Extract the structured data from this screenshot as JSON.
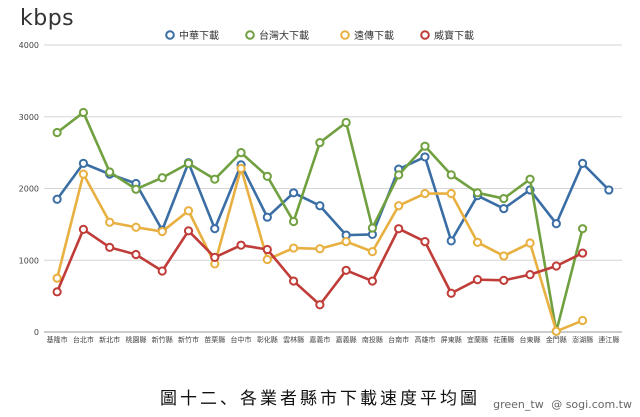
{
  "unit_label": "kbps",
  "caption": "圖十二、各業者縣市下載速度平均圖",
  "watermark": {
    "left": "green_tw",
    "right": "@ sogi.com.tw"
  },
  "chart_data": {
    "type": "line",
    "title": "",
    "ylabel": "kbps",
    "ylim": [
      0,
      4000
    ],
    "yticks": [
      0,
      1000,
      2000,
      3000,
      4000
    ],
    "grid": true,
    "legend_position": "top",
    "categories": [
      "基隆市",
      "台北市",
      "新北市",
      "桃園縣",
      "新竹縣",
      "新竹市",
      "苗栗縣",
      "台中市",
      "彰化縣",
      "雲林縣",
      "嘉義市",
      "嘉義縣",
      "南投縣",
      "台南市",
      "高雄市",
      "屏東縣",
      "宜蘭縣",
      "花蓮縣",
      "台東縣",
      "金門縣",
      "澎湖縣",
      "連江縣"
    ],
    "series": [
      {
        "name": "中華下載",
        "color": "#3a6ea5",
        "values": [
          1850,
          2350,
          2200,
          2070,
          1420,
          2360,
          1440,
          2330,
          1600,
          1940,
          1760,
          1350,
          1360,
          2270,
          2440,
          1270,
          1900,
          1720,
          1980,
          1510,
          2350,
          1980
        ]
      },
      {
        "name": "台灣大下載",
        "color": "#70a040",
        "values": [
          2780,
          3060,
          2230,
          1990,
          2150,
          2350,
          2130,
          2500,
          2170,
          1540,
          2640,
          2920,
          1450,
          2190,
          2590,
          2190,
          1940,
          1860,
          2130,
          10,
          1440,
          null
        ]
      },
      {
        "name": "遠傳下載",
        "color": "#e8b040",
        "values": [
          750,
          2200,
          1530,
          1460,
          1400,
          1690,
          950,
          2280,
          1010,
          1170,
          1160,
          1260,
          1120,
          1760,
          1930,
          1930,
          1250,
          1060,
          1240,
          10,
          160,
          null
        ]
      },
      {
        "name": "威寶下載",
        "color": "#c03c38",
        "values": [
          560,
          1430,
          1180,
          1080,
          850,
          1410,
          1040,
          1210,
          1150,
          710,
          380,
          860,
          710,
          1440,
          1260,
          540,
          730,
          720,
          800,
          920,
          1100,
          null
        ]
      }
    ]
  }
}
